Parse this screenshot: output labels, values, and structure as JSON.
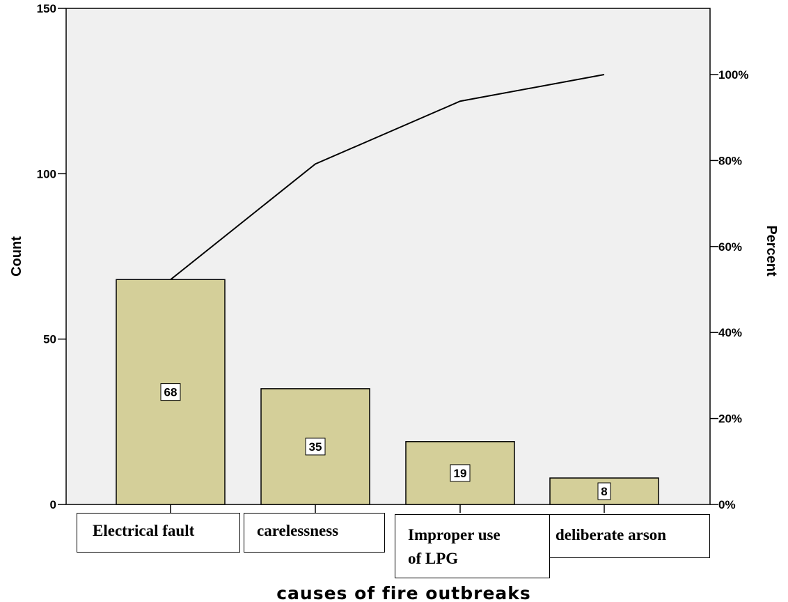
{
  "chart_data": {
    "type": "bar",
    "categories": [
      "Electrical fault",
      "carelessness",
      "Improper use of LPG",
      "deliberate arson"
    ],
    "values": [
      68,
      35,
      19,
      8
    ],
    "data_labels": [
      "68",
      "35",
      "19",
      "8"
    ],
    "cumulative_percent": [
      52.3,
      79.2,
      93.8,
      100
    ],
    "xlabel": "causes of fire outbreaks",
    "ylabel": "Count",
    "y2label": "Percent",
    "ylim": [
      0,
      150
    ],
    "y2lim": [
      0,
      115.4
    ],
    "yticks": [
      0,
      50,
      100,
      150
    ],
    "y2ticks": [
      0,
      20,
      40,
      60,
      80,
      100
    ],
    "y2tick_labels": [
      "0%",
      "20%",
      "40%",
      "60%",
      "80%",
      "100%"
    ],
    "grid": false,
    "bar_color": "#d4cf99",
    "plot_background": "#f0f0f0"
  },
  "category_boxes": [
    {
      "line1": "Electrical fault",
      "line2": ""
    },
    {
      "line1": "carelessness",
      "line2": ""
    },
    {
      "line1": "Improper use",
      "line2": "of LPG"
    },
    {
      "line1": "deliberate arson",
      "line2": ""
    }
  ]
}
